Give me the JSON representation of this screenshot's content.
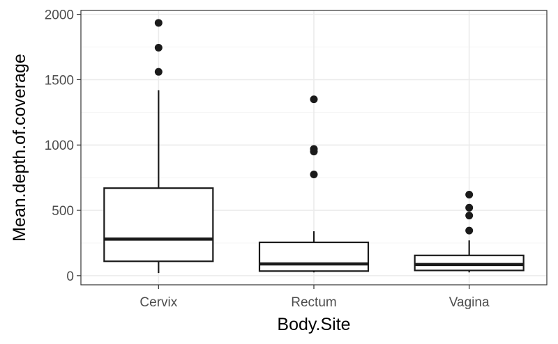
{
  "chart_data": {
    "type": "boxplot",
    "title": "",
    "xlabel": "Body.Site",
    "ylabel": "Mean.depth.of.coverage",
    "ylim": [
      -70,
      2030
    ],
    "yticks": [
      0,
      500,
      1000,
      1500,
      2000
    ],
    "y_tick_labels": [
      "0",
      "500",
      "1000",
      "1500",
      "2000"
    ],
    "categories": [
      "Cervix",
      "Rectum",
      "Vagina"
    ],
    "grid": true,
    "legend": "none",
    "boxes": [
      {
        "category": "Cervix",
        "whisker_low": 20,
        "q1": 110,
        "median": 280,
        "q3": 670,
        "whisker_high": 1420,
        "outliers": [
          1560,
          1745,
          1935
        ]
      },
      {
        "category": "Rectum",
        "whisker_low": 25,
        "q1": 35,
        "median": 90,
        "q3": 255,
        "whisker_high": 340,
        "outliers": [
          775,
          950,
          970,
          1350
        ]
      },
      {
        "category": "Vagina",
        "whisker_low": 25,
        "q1": 40,
        "median": 85,
        "q3": 155,
        "whisker_high": 270,
        "outliers": [
          345,
          460,
          520,
          620
        ]
      }
    ],
    "colors": {
      "box_stroke": "#1a1a1a",
      "grid_major": "#ebebeb",
      "grid_minor": "#f4f4f4",
      "panel_border": "#333333",
      "tick_text": "#4d4d4d"
    }
  }
}
